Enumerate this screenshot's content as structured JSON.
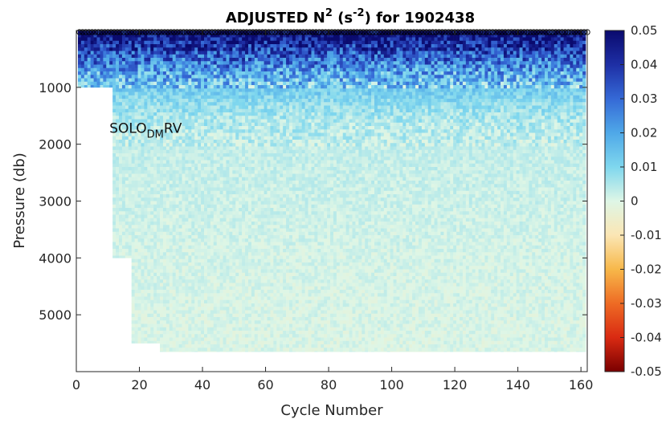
{
  "chart_data": {
    "type": "heatmap",
    "title": "ADJUSTED N",
    "title_superscript": "2",
    "title_unit_open": " (s",
    "title_unit_superscript": "-2",
    "title_rest": ") for 1902438",
    "xlabel": "Cycle Number",
    "ylabel": "Pressure (db)",
    "xlim": [
      0,
      162
    ],
    "ylim": [
      0,
      6000
    ],
    "y_reversed": true,
    "x_ticks": [
      0,
      20,
      40,
      60,
      80,
      100,
      120,
      140,
      160
    ],
    "y_ticks": [
      1000,
      2000,
      3000,
      4000,
      5000
    ],
    "x_tick_labels": [
      "0",
      "20",
      "40",
      "60",
      "80",
      "100",
      "120",
      "140",
      "160"
    ],
    "y_tick_labels": [
      "1000",
      "2000",
      "3000",
      "4000",
      "5000"
    ],
    "colorbar": {
      "clim": [
        -0.05,
        0.05
      ],
      "ticks": [
        0.05,
        0.04,
        0.03,
        0.02,
        0.01,
        0,
        -0.01,
        -0.02,
        -0.03,
        -0.04,
        -0.05
      ],
      "tick_labels": [
        "0.05",
        "0.04",
        "0.03",
        "0.02",
        "0.01",
        "0",
        "-0.01",
        "-0.02",
        "-0.03",
        "-0.04",
        "-0.05"
      ],
      "colors": [
        "#0a0a6e",
        "#1e2fa5",
        "#3569d6",
        "#4fa8e8",
        "#7fd7ee",
        "#def6e6",
        "#fbe6b4",
        "#f7b84a",
        "#ee6b24",
        "#d92a12",
        "#7a0000"
      ]
    },
    "annotation": {
      "text": "SOLO",
      "subscript": "DM",
      "suffix": "RV",
      "x": 10.5,
      "y": 1800
    },
    "surface_markers": {
      "y": 0,
      "x_start": 1,
      "x_end": 162
    },
    "value_profile": {
      "depth": [
        0,
        100,
        250,
        500,
        750,
        1000,
        1300,
        1600,
        2000,
        3000,
        4000,
        5000,
        6000
      ],
      "n2": [
        0.05,
        0.048,
        0.04,
        0.03,
        0.02,
        0.013,
        0.008,
        0.005,
        0.003,
        0.002,
        0.001,
        0.0005,
        0
      ]
    },
    "profile_bottom": {
      "cycle_ranges": [
        {
          "from": 1,
          "to": 12,
          "max_pressure": 1000
        },
        {
          "from": 12,
          "to": 18,
          "max_pressure": 4000
        },
        {
          "from": 18,
          "to": 27,
          "max_pressure": 5500
        },
        {
          "from": 27,
          "to": 162,
          "max_pressure": 5650
        }
      ]
    }
  }
}
